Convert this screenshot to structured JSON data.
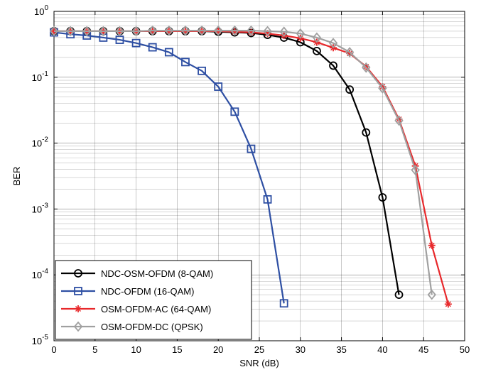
{
  "chart_data": {
    "type": "line",
    "title": "",
    "xlabel": "SNR (dB)",
    "ylabel": "BER",
    "xlim": [
      0,
      50
    ],
    "ylim": [
      1e-05,
      1
    ],
    "yscale": "log",
    "grid": true,
    "legend_position": "bottom-left",
    "x_ticks": [
      0,
      5,
      10,
      15,
      20,
      25,
      30,
      35,
      40,
      45,
      50
    ],
    "y_ticks": [
      {
        "value": 1,
        "base": "10",
        "exp": "0"
      },
      {
        "value": 0.1,
        "base": "10",
        "exp": "-1"
      },
      {
        "value": 0.01,
        "base": "10",
        "exp": "-2"
      },
      {
        "value": 0.001,
        "base": "10",
        "exp": "-3"
      },
      {
        "value": 0.0001,
        "base": "10",
        "exp": "-4"
      },
      {
        "value": 1e-05,
        "base": "10",
        "exp": "-5"
      }
    ],
    "series": [
      {
        "name": "NDC-OSM-OFDM (8-QAM)",
        "color": "#000000",
        "marker": "circle",
        "x": [
          0,
          2,
          4,
          6,
          8,
          10,
          12,
          14,
          16,
          18,
          20,
          22,
          24,
          26,
          28,
          30,
          32,
          34,
          36,
          38,
          40,
          42
        ],
        "y": [
          0.5,
          0.5,
          0.5,
          0.5,
          0.5,
          0.5,
          0.5,
          0.5,
          0.5,
          0.5,
          0.49,
          0.48,
          0.47,
          0.44,
          0.4,
          0.34,
          0.25,
          0.15,
          0.065,
          0.0145,
          0.0015,
          5e-05
        ]
      },
      {
        "name": "NDC-OFDM (16-QAM)",
        "color": "#2e4fa3",
        "marker": "square",
        "x": [
          0,
          2,
          4,
          6,
          8,
          10,
          12,
          14,
          16,
          18,
          20,
          22,
          24,
          26,
          28
        ],
        "y": [
          0.48,
          0.45,
          0.43,
          0.4,
          0.37,
          0.33,
          0.285,
          0.24,
          0.17,
          0.125,
          0.072,
          0.03,
          0.0082,
          0.0014,
          3.7e-05
        ]
      },
      {
        "name": "OSM-OFDM-AC (64-QAM)",
        "color": "#e8282b",
        "marker": "star",
        "x": [
          0,
          2,
          4,
          6,
          8,
          10,
          12,
          14,
          16,
          18,
          20,
          22,
          24,
          26,
          28,
          30,
          32,
          34,
          36,
          38,
          40,
          42,
          44,
          46,
          48
        ],
        "y": [
          0.5,
          0.5,
          0.5,
          0.5,
          0.5,
          0.5,
          0.5,
          0.5,
          0.5,
          0.5,
          0.5,
          0.49,
          0.48,
          0.46,
          0.43,
          0.39,
          0.34,
          0.28,
          0.23,
          0.145,
          0.072,
          0.023,
          0.0045,
          0.00028,
          3.6e-05
        ]
      },
      {
        "name": "OSM-OFDM-DC (QPSK)",
        "color": "#a0a0a0",
        "marker": "diamond",
        "x": [
          0,
          2,
          4,
          6,
          8,
          10,
          12,
          14,
          16,
          18,
          20,
          22,
          24,
          26,
          28,
          30,
          32,
          34,
          36,
          38,
          40,
          42,
          44,
          46
        ],
        "y": [
          0.5,
          0.5,
          0.5,
          0.5,
          0.5,
          0.5,
          0.51,
          0.51,
          0.51,
          0.51,
          0.51,
          0.51,
          0.51,
          0.5,
          0.49,
          0.46,
          0.4,
          0.33,
          0.24,
          0.14,
          0.068,
          0.022,
          0.0039,
          5e-05
        ]
      }
    ]
  }
}
